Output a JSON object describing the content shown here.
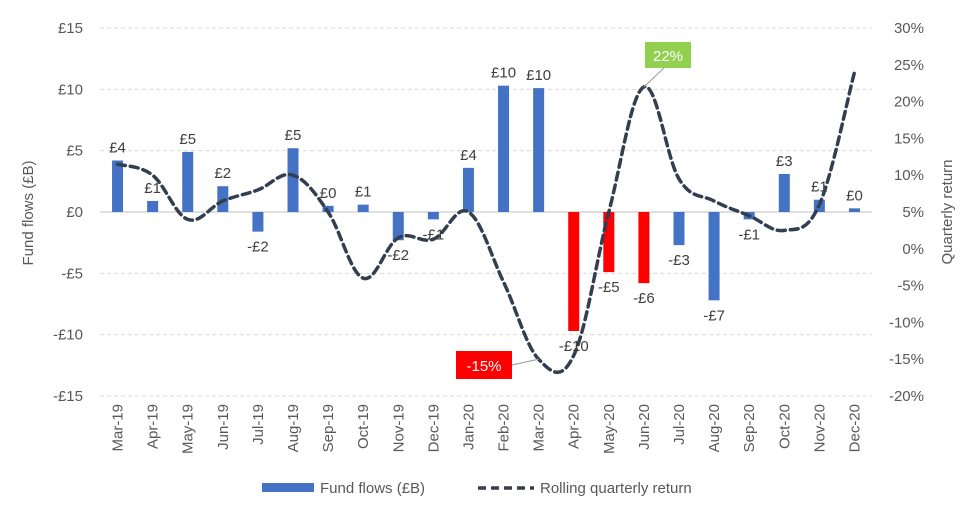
{
  "chart_data": {
    "type": "bar+line",
    "title": "",
    "categories": [
      "Mar-19",
      "Apr-19",
      "May-19",
      "Jun-19",
      "Jul-19",
      "Aug-19",
      "Sep-19",
      "Oct-19",
      "Nov-19",
      "Dec-19",
      "Jan-20",
      "Feb-20",
      "Mar-20",
      "Apr-20",
      "May-20",
      "Jun-20",
      "Jul-20",
      "Aug-20",
      "Sep-20",
      "Oct-20",
      "Nov-20",
      "Dec-20"
    ],
    "series": [
      {
        "name": "Fund flows (£B)",
        "type": "bar",
        "axis": "left",
        "color": "#4472C4",
        "highlight_color": "#FF0000",
        "highlight_indices": [
          13,
          14,
          15
        ],
        "values": [
          4.2,
          0.9,
          4.9,
          2.1,
          -1.6,
          5.2,
          0.5,
          0.6,
          -2.3,
          -0.6,
          3.6,
          10.3,
          10.1,
          -9.7,
          -4.9,
          -5.8,
          -2.7,
          -7.2,
          -0.6,
          3.1,
          1.0,
          0.3
        ],
        "labels": [
          "£4",
          "£1",
          "£5",
          "£2",
          "-£2",
          "£5",
          "£0",
          "£1",
          "-£2",
          "-£1",
          "£4",
          "£10",
          "£10",
          "-£10",
          "-£5",
          "-£6",
          "-£3",
          "-£7",
          "-£1",
          "£3",
          "£1",
          "£0"
        ]
      },
      {
        "name": "Rolling quarterly return",
        "type": "line",
        "style": "dashed",
        "axis": "right",
        "color": "#333F50",
        "values": [
          11.5,
          10.0,
          4.0,
          6.5,
          8.0,
          10.0,
          5.0,
          -4.0,
          1.5,
          1.3,
          5.0,
          -4.5,
          -15.0,
          -14.5,
          5.0,
          22.0,
          9.5,
          6.5,
          4.5,
          2.5,
          6.0,
          24.0
        ]
      }
    ],
    "y_left": {
      "label": "Fund flows (£B)",
      "min": -15,
      "max": 15,
      "step": 5,
      "tick_labels": [
        "-£15",
        "-£10",
        "-£5",
        "£0",
        "£5",
        "£10",
        "£15"
      ]
    },
    "y_right": {
      "label": "Quarterly return",
      "min": -20,
      "max": 30,
      "step": 5,
      "tick_labels": [
        "-20%",
        "-15%",
        "-10%",
        "-5%",
        "0%",
        "5%",
        "10%",
        "15%",
        "20%",
        "25%",
        "30%"
      ]
    },
    "grid": true,
    "legend": {
      "position": "bottom",
      "entries": [
        "Fund flows (£B)",
        "Rolling quarterly return"
      ]
    },
    "annotations": [
      {
        "text": "22%",
        "series": "Rolling quarterly return",
        "index": 15,
        "bg": "#92D050",
        "fg": "#ffffff"
      },
      {
        "text": "-15%",
        "series": "Rolling quarterly return",
        "index": 12,
        "bg": "#FF0000",
        "fg": "#ffffff"
      }
    ]
  }
}
